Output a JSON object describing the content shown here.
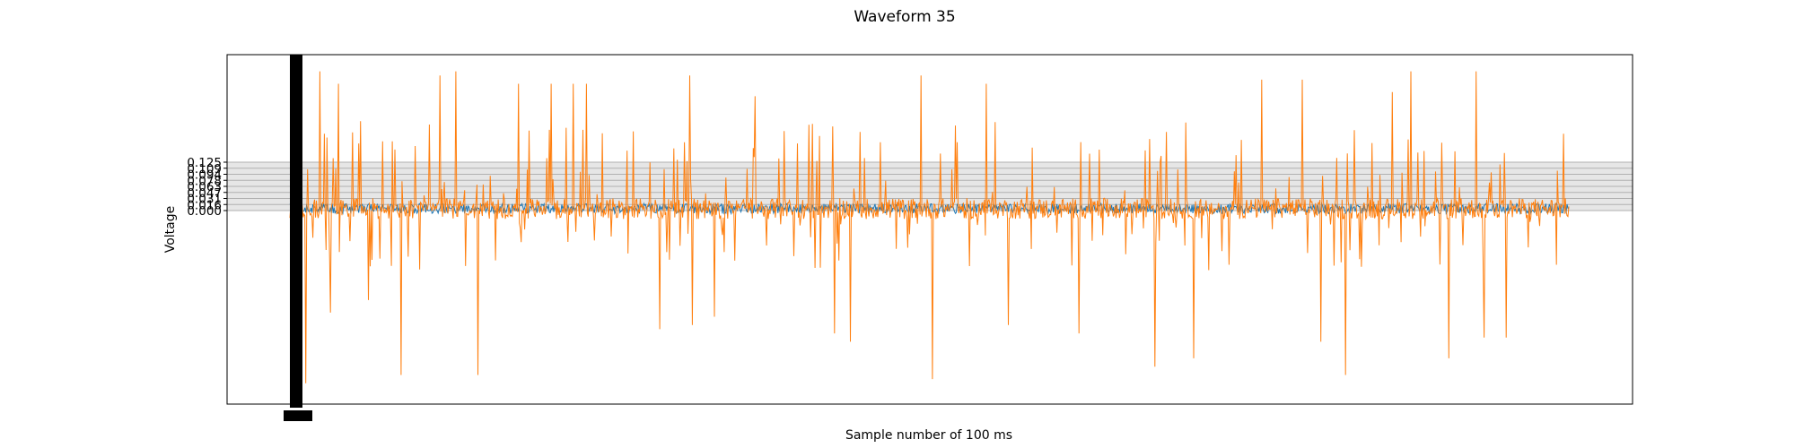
{
  "chart_data": {
    "type": "line",
    "title": "Waveform 35",
    "xlabel": "Sample number of 100 ms",
    "ylabel": "Voltage",
    "ylim": [
      -0.55,
      0.29
    ],
    "x_range": [
      0,
      4700
    ],
    "yticks": [
      "0.000",
      "0.016",
      "0.031",
      "0.047",
      "0.063",
      "0.078",
      "0.094",
      "0.109",
      "0.125"
    ],
    "xtick_label_note": "overlapping tick labels rendered as a solid black block",
    "grid": true,
    "legend": "none",
    "series": [
      {
        "color": "#1f77b4",
        "baseline": -0.08,
        "noise_amplitude": 0.012,
        "spikes": []
      },
      {
        "color": "#ff7f0e",
        "baseline": -0.08,
        "noise_amplitude": 0.025,
        "spikes": [
          {
            "x": 30,
            "y": -0.35
          },
          {
            "x": 40,
            "y": 0.1
          },
          {
            "x": 60,
            "y": -0.5
          },
          {
            "x": 110,
            "y": 0.25
          },
          {
            "x": 150,
            "y": -0.33
          },
          {
            "x": 180,
            "y": 0.22
          },
          {
            "x": 290,
            "y": -0.3
          },
          {
            "x": 410,
            "y": -0.48
          },
          {
            "x": 550,
            "y": 0.24
          },
          {
            "x": 610,
            "y": 0.25
          },
          {
            "x": 690,
            "y": -0.48
          },
          {
            "x": 840,
            "y": 0.22
          },
          {
            "x": 960,
            "y": 0.22
          },
          {
            "x": 1040,
            "y": 0.22
          },
          {
            "x": 1090,
            "y": 0.22
          },
          {
            "x": 1360,
            "y": -0.37
          },
          {
            "x": 1470,
            "y": 0.24
          },
          {
            "x": 1480,
            "y": -0.36
          },
          {
            "x": 1560,
            "y": -0.34
          },
          {
            "x": 1710,
            "y": 0.19
          },
          {
            "x": 2000,
            "y": -0.38
          },
          {
            "x": 2060,
            "y": -0.4
          },
          {
            "x": 2320,
            "y": 0.24
          },
          {
            "x": 2360,
            "y": -0.49
          },
          {
            "x": 2560,
            "y": 0.22
          },
          {
            "x": 2640,
            "y": -0.36
          },
          {
            "x": 2900,
            "y": -0.38
          },
          {
            "x": 3180,
            "y": -0.46
          },
          {
            "x": 3320,
            "y": -0.44
          },
          {
            "x": 3570,
            "y": 0.23
          },
          {
            "x": 3720,
            "y": 0.23
          },
          {
            "x": 3790,
            "y": -0.4
          },
          {
            "x": 3880,
            "y": -0.48
          },
          {
            "x": 4050,
            "y": 0.2
          },
          {
            "x": 4120,
            "y": 0.25
          },
          {
            "x": 4260,
            "y": -0.44
          },
          {
            "x": 4360,
            "y": 0.25
          },
          {
            "x": 4390,
            "y": -0.39
          },
          {
            "x": 4470,
            "y": -0.39
          },
          {
            "x": 4680,
            "y": 0.1
          }
        ]
      }
    ]
  }
}
